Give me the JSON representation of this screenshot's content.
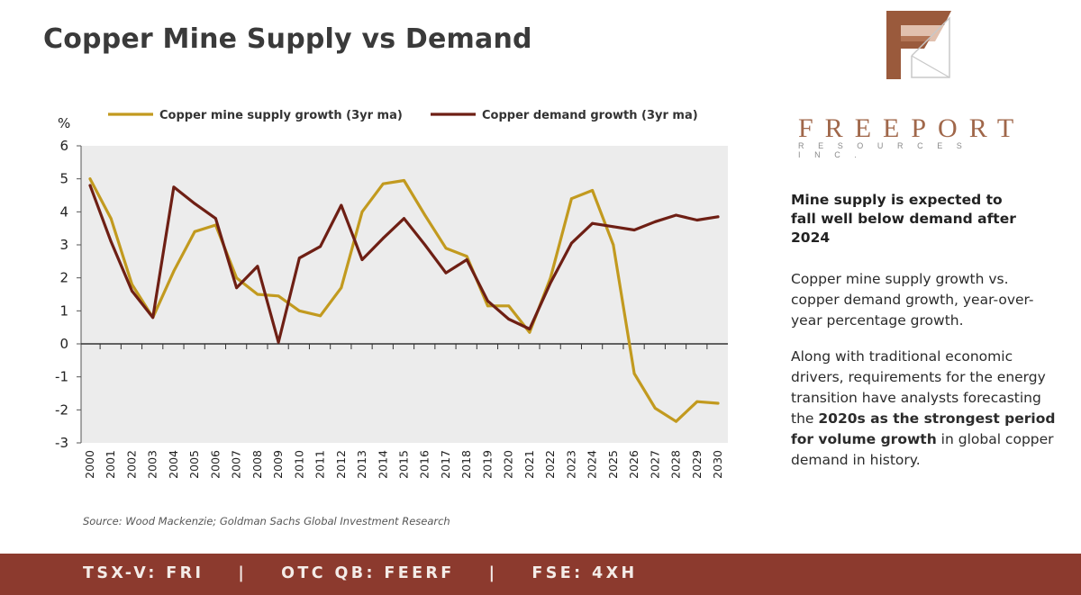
{
  "title": "Copper Mine Supply vs Demand",
  "brand": {
    "name": "FREEPORT",
    "sub": "RESOURCES INC."
  },
  "sidebar": {
    "heading": "Mine supply is expected to fall well below demand after 2024",
    "p1": "Copper mine supply growth vs. copper demand growth, year-over-year percentage growth.",
    "p2_parts": [
      {
        "text": "Along with traditional economic drivers, requirements for the energy transition have analysts forecasting the ",
        "bold": false
      },
      {
        "text": "2020s as the strongest period for volume growth",
        "bold": true
      },
      {
        "text": " in global copper demand in history.",
        "bold": false
      }
    ]
  },
  "source": "Source:  Wood Mackenzie; Goldman Sachs Global Investment Research",
  "footer": "TSX-V: FRI    |    OTC QB: FEERF    |    FSE: 4XH",
  "colors": {
    "supply": "#c29a1f",
    "demand": "#6e1f14",
    "plot_bg": "#ececec",
    "footer_bg": "#8c3a2e",
    "brand": "#a0674a"
  },
  "chart_data": {
    "type": "line",
    "ylabel": "%",
    "ylim": [
      -3,
      6
    ],
    "yticks": [
      6,
      5,
      4,
      3,
      2,
      1,
      0,
      -1,
      -2,
      -3
    ],
    "legend_position": "top",
    "x": [
      "2000",
      "2001",
      "2002",
      "2003",
      "2004",
      "2005",
      "2006",
      "2007",
      "2008",
      "2009",
      "2010",
      "2011",
      "2012",
      "2013",
      "2014",
      "2015",
      "2016",
      "2017",
      "2018",
      "2019",
      "2020",
      "2021",
      "2022",
      "2023",
      "2024",
      "2025",
      "2026",
      "2027",
      "2028",
      "2029",
      "2030"
    ],
    "series": [
      {
        "name": "Copper mine supply growth (3yr ma)",
        "color": "#c29a1f",
        "values": [
          5.0,
          3.8,
          1.8,
          0.8,
          2.2,
          3.4,
          3.6,
          2.0,
          1.5,
          1.45,
          1.0,
          0.85,
          1.7,
          4.0,
          4.85,
          4.95,
          3.9,
          2.9,
          2.65,
          1.15,
          1.15,
          0.35,
          2.0,
          4.4,
          4.65,
          3.0,
          -0.9,
          -1.95,
          -2.35,
          -1.75,
          -1.8
        ]
      },
      {
        "name": "Copper demand growth (3yr ma)",
        "color": "#6e1f14",
        "values": [
          4.8,
          3.1,
          1.6,
          0.8,
          4.75,
          4.25,
          3.8,
          1.7,
          2.35,
          0.05,
          2.6,
          2.95,
          4.2,
          2.55,
          3.2,
          3.8,
          3.0,
          2.15,
          2.55,
          1.3,
          0.75,
          0.45,
          1.85,
          3.05,
          3.65,
          3.55,
          3.45,
          3.7,
          3.9,
          3.75,
          3.85
        ]
      }
    ]
  }
}
